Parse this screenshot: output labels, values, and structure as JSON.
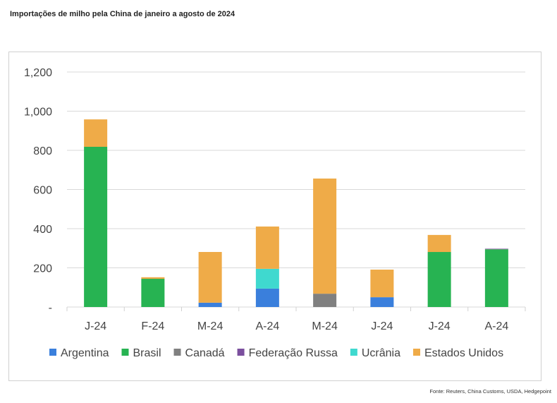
{
  "title": "Importações de milho pela China de janeiro a agosto de 2024",
  "source": "Fonte: Reuters, China Customs, USDA, Hedgepoint",
  "chart_data": {
    "type": "bar",
    "stacked": true,
    "title": "Importações de milho pela China de janeiro a agosto de 2024",
    "categories": [
      "J-24",
      "F-24",
      "M-24",
      "A-24",
      "M-24",
      "J-24",
      "J-24",
      "A-24"
    ],
    "ylim": [
      0,
      1200
    ],
    "yticks": [
      0,
      200,
      400,
      600,
      800,
      1000,
      1200
    ],
    "ytick_labels": [
      "-",
      "200",
      "400",
      "600",
      "800",
      "1,000",
      "1,200"
    ],
    "grid": true,
    "legend": "bottom",
    "series": [
      {
        "name": "Argentina",
        "color": "#3a7fdc",
        "values": [
          0,
          0,
          22,
          94,
          0,
          50,
          0,
          0
        ]
      },
      {
        "name": "Brasil",
        "color": "#27b352",
        "values": [
          818,
          144,
          0,
          0,
          0,
          0,
          281,
          294
        ]
      },
      {
        "name": "Canadá",
        "color": "#808080",
        "values": [
          0,
          0,
          0,
          0,
          68,
          0,
          0,
          2
        ]
      },
      {
        "name": "Federação Russa",
        "color": "#7b4f9e",
        "values": [
          0,
          0,
          0,
          0,
          0,
          0,
          0,
          2
        ]
      },
      {
        "name": "Ucrânia",
        "color": "#3fd9cf",
        "values": [
          0,
          0,
          0,
          101,
          0,
          0,
          0,
          0
        ]
      },
      {
        "name": "Estados Unidos",
        "color": "#efab48",
        "values": [
          140,
          8,
          259,
          216,
          588,
          141,
          87,
          0
        ]
      }
    ]
  }
}
